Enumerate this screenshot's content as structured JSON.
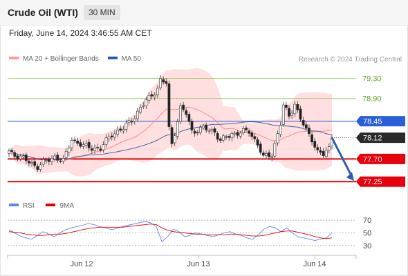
{
  "header": {
    "title": "Crude Oil (WTI)",
    "timeframe": "30 MIN"
  },
  "datetime": "Friday, June 14, 2024 3:46:55 AM CET",
  "credit": "Research © 2024 Trading Central",
  "colors": {
    "up_candle": "#ffffff",
    "down_candle": "#222222",
    "bollinger": "#ff9a9a",
    "ma20": "#ff8080",
    "ma50": "#2a5aa8",
    "resistance": "#9ccc65",
    "current_level": "#2b5fd9",
    "support": "#e8000b",
    "arrow": "#2f5fa8",
    "rsi": "#5b86e5",
    "rsi_ma": "#e60000"
  },
  "chart_data": [
    {
      "type": "candlestick",
      "legend": [
        {
          "name": "MA 20 + Bollinger Bands",
          "color": "#ff8080"
        },
        {
          "name": "MA 50",
          "color": "#2a5aa8"
        }
      ],
      "x_ticks": [
        "Jun 12",
        "Jun 13",
        "Jun 14"
      ],
      "ylim": [
        77.02,
        79.54
      ],
      "levels": [
        {
          "value": 79.3,
          "label": "79.30",
          "kind": "resistance"
        },
        {
          "value": 78.9,
          "label": "78.90",
          "kind": "resistance"
        },
        {
          "value": 78.45,
          "label": "78.45",
          "kind": "current"
        },
        {
          "value": 78.12,
          "label": "78.12",
          "kind": "last_price"
        },
        {
          "value": 77.7,
          "label": "77.70",
          "kind": "support"
        },
        {
          "value": 77.25,
          "label": "77.25",
          "kind": "support"
        }
      ],
      "forecast_arrow": {
        "from": 78.12,
        "to": 77.25
      },
      "anchors": [
        [
          0,
          77.85
        ],
        [
          10,
          77.55
        ],
        [
          16,
          77.75
        ],
        [
          19,
          77.65
        ],
        [
          22,
          78.1
        ],
        [
          26,
          77.95
        ],
        [
          32,
          77.9
        ],
        [
          36,
          78.2
        ],
        [
          40,
          78.3
        ],
        [
          44,
          78.55
        ],
        [
          48,
          78.85
        ],
        [
          52,
          79.1
        ],
        [
          53,
          79.25
        ],
        [
          55,
          79.2
        ],
        [
          56,
          78.3
        ],
        [
          57,
          78.0
        ],
        [
          60,
          78.7
        ],
        [
          62,
          78.6
        ],
        [
          64,
          78.25
        ],
        [
          68,
          78.3
        ],
        [
          72,
          78.25
        ],
        [
          74,
          78.05
        ],
        [
          78,
          78.2
        ],
        [
          84,
          78.25
        ],
        [
          87,
          78.0
        ],
        [
          89,
          77.72
        ],
        [
          92,
          77.8
        ],
        [
          95,
          78.4
        ],
        [
          96,
          78.75
        ],
        [
          98,
          78.55
        ],
        [
          100,
          78.8
        ],
        [
          102,
          78.5
        ],
        [
          104,
          78.25
        ],
        [
          106,
          78.1
        ],
        [
          108,
          77.85
        ],
        [
          110,
          77.78
        ],
        [
          112,
          77.9
        ],
        [
          113,
          78.12
        ]
      ]
    },
    {
      "type": "line",
      "legend": [
        {
          "name": "RSI",
          "color": "#5b86e5"
        },
        {
          "name": "9MA",
          "color": "#e60000"
        }
      ],
      "ylim": [
        20,
        80
      ],
      "y_ticks": [
        70,
        50,
        30
      ],
      "series": [
        {
          "name": "RSI",
          "values": [
            55,
            50,
            45,
            42,
            40,
            46,
            52,
            48,
            44,
            50,
            55,
            58,
            60,
            62,
            65,
            63,
            60,
            58,
            55,
            57,
            60,
            62,
            64,
            66,
            68,
            66,
            60,
            36,
            44,
            56,
            52,
            44,
            46,
            50,
            48,
            46,
            44,
            47,
            50,
            52,
            48,
            46,
            42,
            40,
            47,
            56,
            60,
            58,
            52,
            58,
            50,
            44,
            42,
            40,
            38,
            40,
            42,
            50
          ]
        },
        {
          "name": "9MA",
          "values": [
            52,
            51,
            50,
            48,
            47,
            46,
            46,
            47,
            48,
            48,
            49,
            51,
            53,
            55,
            57,
            58,
            59,
            59,
            59,
            59,
            59,
            60,
            61,
            62,
            63,
            64,
            63,
            58,
            54,
            52,
            51,
            50,
            49,
            48,
            48,
            47,
            47,
            47,
            47,
            48,
            48,
            47,
            46,
            45,
            45,
            46,
            48,
            50,
            52,
            53,
            53,
            51,
            49,
            47,
            44,
            42,
            41,
            42
          ]
        }
      ]
    }
  ]
}
